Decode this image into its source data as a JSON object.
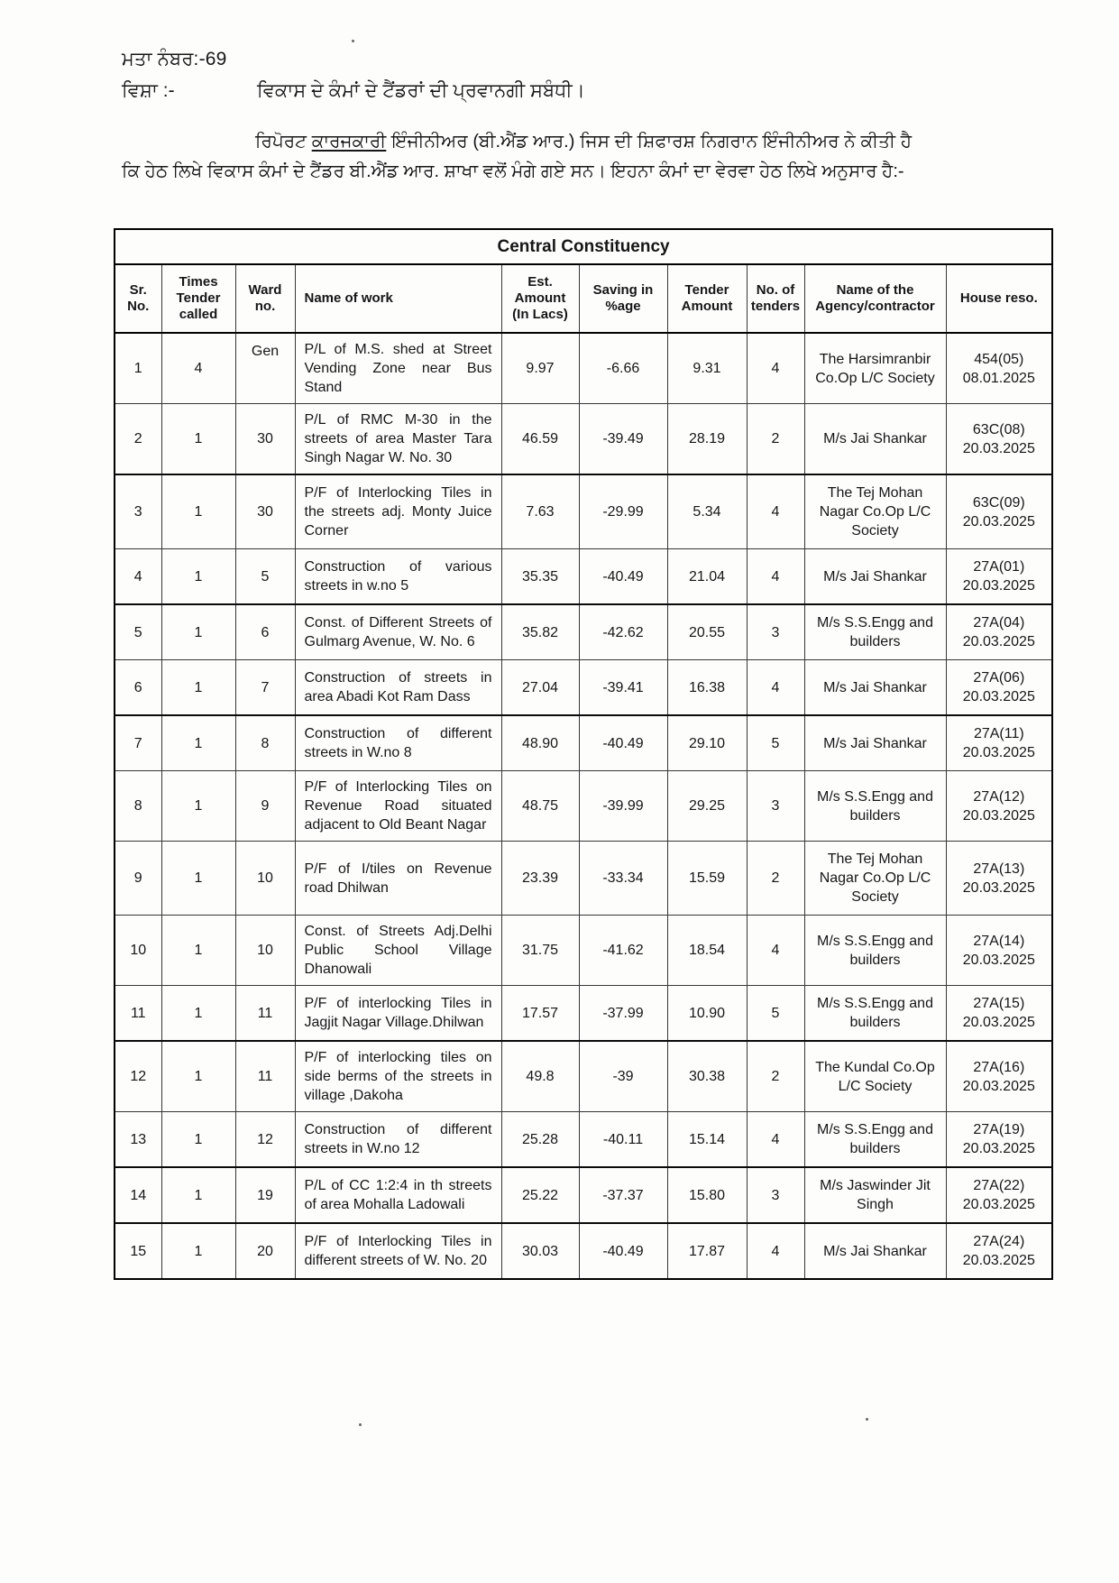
{
  "document": {
    "resolution_no": "ਮਤਾ ਨੰਬਰ:-69",
    "subject_label": "ਵਿਸ਼ਾ :-",
    "subject_text": "ਵਿਕਾਸ ਦੇ ਕੰਮਾਂ ਦੇ ਟੈਂਡਰਾਂ ਦੀ ਪ੍ਰਵਾਨਗੀ ਸਬੰਧੀ।",
    "paragraph": {
      "before": "ਰਿਪੋਰਟ ",
      "underlined": "ਕਾਰਜਕਾਰੀ",
      "after": " ਇੰਜੀਨੀਅਰ (ਬੀ.ਐਂਡ ਆਰ.) ਜਿਸ ਦੀ ਸ਼ਿਫਾਰਸ਼ ਨਿਗਰਾਨ ਇੰਜੀਨੀਅਰ ਨੇ ਕੀਤੀ ਹੈ ਕਿ ਹੇਠ ਲਿਖੇ ਵਿਕਾਸ ਕੰਮਾਂ ਦੇ ਟੈਂਡਰ  ਬੀ.ਐਂਡ ਆਰ. ਸ਼ਾਖਾ ਵਲੋਂ ਮੰਗੇ ਗਏ ਸਨ। ਇਹਨਾ ਕੰਮਾਂ ਦਾ ਵੇਰਵਾ ਹੇਠ ਲਿਖੇ ਅਨੁਸਾਰ ਹੈ:-"
    }
  },
  "table": {
    "title": "Central Constituency",
    "columns": [
      {
        "key": "sr",
        "label": "Sr. No."
      },
      {
        "key": "times",
        "label": "Times Tender called"
      },
      {
        "key": "ward",
        "label": "Ward no."
      },
      {
        "key": "work",
        "label": "Name of work"
      },
      {
        "key": "est",
        "label": "Est. Amount (In Lacs)"
      },
      {
        "key": "saving",
        "label": "Saving in %age"
      },
      {
        "key": "tender",
        "label": "Tender Amount"
      },
      {
        "key": "num",
        "label": "No. of tenders"
      },
      {
        "key": "agency",
        "label": "Name of the Agency/contractor"
      },
      {
        "key": "house",
        "label": "House reso."
      }
    ],
    "thick_top_rows": [
      3,
      5,
      7,
      12,
      14,
      15
    ],
    "rows": [
      {
        "sr": "1",
        "times": "4",
        "ward": "Gen",
        "work": "P/L of M.S. shed at Street Vending Zone near Bus Stand",
        "est": "9.97",
        "saving": "-6.66",
        "tender": "9.31",
        "num": "4",
        "agency": "The Harsimranbir Co.Op L/C Society",
        "house": "454(05)\n08.01.2025"
      },
      {
        "sr": "2",
        "times": "1",
        "ward": "30",
        "work": "P/L of RMC M-30 in the streets of area Master Tara Singh Nagar W. No. 30",
        "est": "46.59",
        "saving": "-39.49",
        "tender": "28.19",
        "num": "2",
        "agency": "M/s Jai Shankar",
        "house": "63C(08)\n20.03.2025"
      },
      {
        "sr": "3",
        "times": "1",
        "ward": "30",
        "work": "P/F of Interlocking Tiles in the streets adj. Monty Juice Corner",
        "est": "7.63",
        "saving": "-29.99",
        "tender": "5.34",
        "num": "4",
        "agency": "The Tej Mohan Nagar Co.Op L/C Society",
        "house": "63C(09)\n20.03.2025"
      },
      {
        "sr": "4",
        "times": "1",
        "ward": "5",
        "work": "Construction of various streets in w.no 5",
        "est": "35.35",
        "saving": "-40.49",
        "tender": "21.04",
        "num": "4",
        "agency": "M/s Jai Shankar",
        "house": "27A(01)\n20.03.2025"
      },
      {
        "sr": "5",
        "times": "1",
        "ward": "6",
        "work": "Const. of Different Streets of Gulmarg Avenue, W. No. 6",
        "est": "35.82",
        "saving": "-42.62",
        "tender": "20.55",
        "num": "3",
        "agency": "M/s S.S.Engg and builders",
        "house": "27A(04)\n20.03.2025"
      },
      {
        "sr": "6",
        "times": "1",
        "ward": "7",
        "work": "Construction of streets in area Abadi Kot Ram Dass",
        "est": "27.04",
        "saving": "-39.41",
        "tender": "16.38",
        "num": "4",
        "agency": "M/s Jai Shankar",
        "house": "27A(06)\n20.03.2025"
      },
      {
        "sr": "7",
        "times": "1",
        "ward": "8",
        "work": "Construction of different streets in W.no 8",
        "est": "48.90",
        "saving": "-40.49",
        "tender": "29.10",
        "num": "5",
        "agency": "M/s Jai Shankar",
        "house": "27A(11)\n20.03.2025"
      },
      {
        "sr": "8",
        "times": "1",
        "ward": "9",
        "work": "P/F of Interlocking Tiles on Revenue Road situated adjacent to Old Beant Nagar",
        "est": "48.75",
        "saving": "-39.99",
        "tender": "29.25",
        "num": "3",
        "agency": "M/s S.S.Engg and builders",
        "house": "27A(12)\n20.03.2025"
      },
      {
        "sr": "9",
        "times": "1",
        "ward": "10",
        "work": "P/F of I/tiles on Revenue road Dhilwan",
        "est": "23.39",
        "saving": "-33.34",
        "tender": "15.59",
        "num": "2",
        "agency": "The Tej Mohan Nagar Co.Op L/C Society",
        "house": "27A(13)\n20.03.2025"
      },
      {
        "sr": "10",
        "times": "1",
        "ward": "10",
        "work": "Const. of Streets Adj.Delhi Public School Village Dhanowali",
        "est": "31.75",
        "saving": "-41.62",
        "tender": "18.54",
        "num": "4",
        "agency": "M/s S.S.Engg and builders",
        "house": "27A(14)\n20.03.2025"
      },
      {
        "sr": "11",
        "times": "1",
        "ward": "11",
        "work": "P/F of interlocking Tiles in Jagjit Nagar Village.Dhilwan",
        "est": "17.57",
        "saving": "-37.99",
        "tender": "10.90",
        "num": "5",
        "agency": "M/s S.S.Engg and builders",
        "house": "27A(15)\n20.03.2025"
      },
      {
        "sr": "12",
        "times": "1",
        "ward": "11",
        "work": "P/F of interlocking tiles on side berms of the streets in village ,Dakoha",
        "est": "49.8",
        "saving": "-39",
        "tender": "30.38",
        "num": "2",
        "agency": "The Kundal Co.Op L/C Society",
        "house": "27A(16)\n20.03.2025"
      },
      {
        "sr": "13",
        "times": "1",
        "ward": "12",
        "work": "Construction of different streets in W.no 12",
        "est": "25.28",
        "saving": "-40.11",
        "tender": "15.14",
        "num": "4",
        "agency": "M/s S.S.Engg and builders",
        "house": "27A(19)\n20.03.2025"
      },
      {
        "sr": "14",
        "times": "1",
        "ward": "19",
        "work": "P/L of CC 1:2:4 in th streets of area Mohalla Ladowali",
        "est": "25.22",
        "saving": "-37.37",
        "tender": "15.80",
        "num": "3",
        "agency": "M/s Jaswinder Jit Singh",
        "house": "27A(22)\n20.03.2025"
      },
      {
        "sr": "15",
        "times": "1",
        "ward": "20",
        "work": "P/F of Interlocking Tiles in different streets of W. No. 20",
        "est": "30.03",
        "saving": "-40.49",
        "tender": "17.87",
        "num": "4",
        "agency": "M/s Jai Shankar",
        "house": "27A(24)\n20.03.2025"
      }
    ]
  }
}
